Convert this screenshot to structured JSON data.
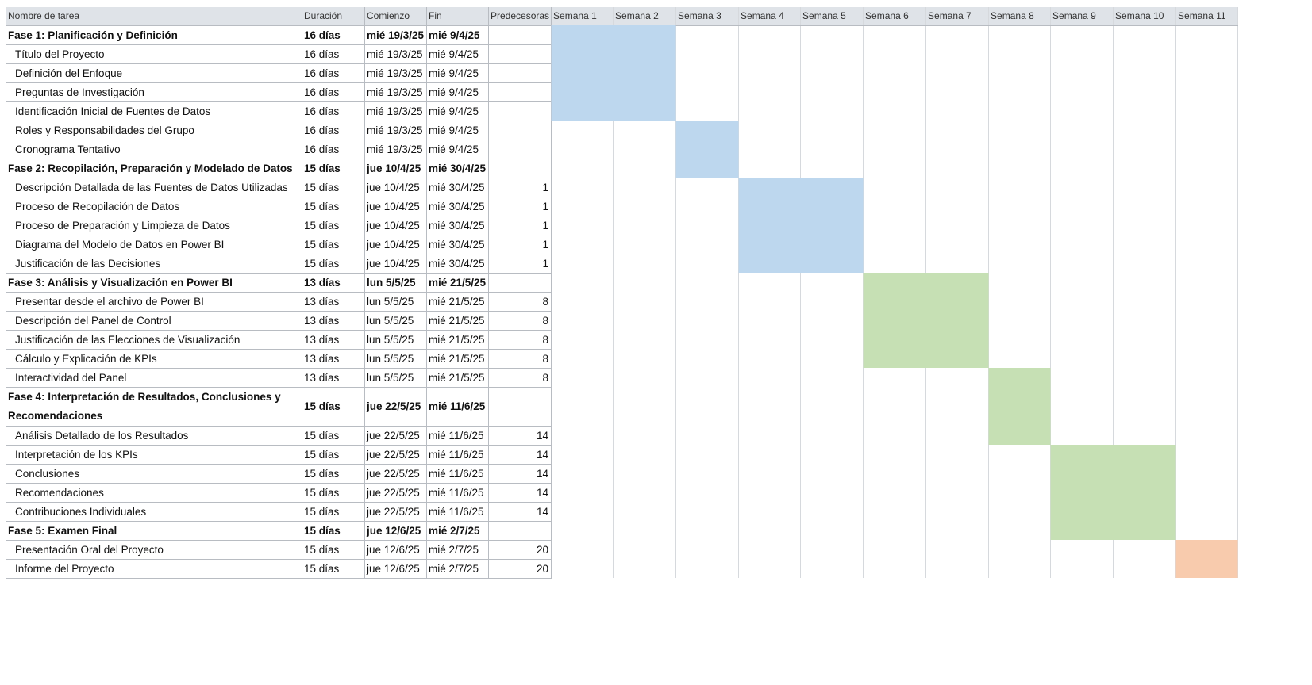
{
  "columns": {
    "name": "Nombre de tarea",
    "duration": "Duración",
    "start": "Comienzo",
    "end": "Fin",
    "predecessors": "Predecesoras",
    "weeks": [
      "Semana 1",
      "Semana 2",
      "Semana 3",
      "Semana 4",
      "Semana 5",
      "Semana 6",
      "Semana 7",
      "Semana 8",
      "Semana 9",
      "Semana 10",
      "Semana 11"
    ]
  },
  "rows": [
    {
      "name": "Fase 1: Planificación y Definición",
      "duration": "16 días",
      "start": "mié 19/3/25",
      "end": "mié 9/4/25",
      "pred": "",
      "phase": true
    },
    {
      "name": "Título del Proyecto",
      "duration": "16 días",
      "start": "mié 19/3/25",
      "end": "mié 9/4/25",
      "pred": "",
      "phase": false
    },
    {
      "name": "Definición del Enfoque",
      "duration": "16 días",
      "start": "mié 19/3/25",
      "end": "mié 9/4/25",
      "pred": "",
      "phase": false
    },
    {
      "name": "Preguntas de Investigación",
      "duration": "16 días",
      "start": "mié 19/3/25",
      "end": "mié 9/4/25",
      "pred": "",
      "phase": false
    },
    {
      "name": "Identificación Inicial de Fuentes de Datos",
      "duration": "16 días",
      "start": "mié 19/3/25",
      "end": "mié 9/4/25",
      "pred": "",
      "phase": false
    },
    {
      "name": "Roles y Responsabilidades del Grupo",
      "duration": "16 días",
      "start": "mié 19/3/25",
      "end": "mié 9/4/25",
      "pred": "",
      "phase": false
    },
    {
      "name": "Cronograma Tentativo",
      "duration": "16 días",
      "start": "mié 19/3/25",
      "end": "mié 9/4/25",
      "pred": "",
      "phase": false
    },
    {
      "name": "Fase 2: Recopilación, Preparación y Modelado de Datos",
      "duration": "15 días",
      "start": "jue 10/4/25",
      "end": "mié 30/4/25",
      "pred": "",
      "phase": true
    },
    {
      "name": "Descripción Detallada de las Fuentes de Datos Utilizadas",
      "duration": "15 días",
      "start": "jue 10/4/25",
      "end": "mié 30/4/25",
      "pred": "1",
      "phase": false
    },
    {
      "name": "Proceso de Recopilación de Datos",
      "duration": "15 días",
      "start": "jue 10/4/25",
      "end": "mié 30/4/25",
      "pred": "1",
      "phase": false
    },
    {
      "name": "Proceso de Preparación y Limpieza de Datos",
      "duration": "15 días",
      "start": "jue 10/4/25",
      "end": "mié 30/4/25",
      "pred": "1",
      "phase": false
    },
    {
      "name": "Diagrama del Modelo de Datos en Power BI",
      "duration": "15 días",
      "start": "jue 10/4/25",
      "end": "mié 30/4/25",
      "pred": "1",
      "phase": false
    },
    {
      "name": "Justificación de las Decisiones",
      "duration": "15 días",
      "start": "jue 10/4/25",
      "end": "mié 30/4/25",
      "pred": "1",
      "phase": false
    },
    {
      "name": "Fase 3: Análisis y Visualización en Power BI",
      "duration": "13 días",
      "start": "lun 5/5/25",
      "end": "mié 21/5/25",
      "pred": "",
      "phase": true
    },
    {
      "name": "Presentar desde el archivo de Power BI",
      "duration": "13 días",
      "start": "lun 5/5/25",
      "end": "mié 21/5/25",
      "pred": "8",
      "phase": false
    },
    {
      "name": "Descripción del Panel de Control",
      "duration": "13 días",
      "start": "lun 5/5/25",
      "end": "mié 21/5/25",
      "pred": "8",
      "phase": false
    },
    {
      "name": "Justificación de las Elecciones de Visualización",
      "duration": "13 días",
      "start": "lun 5/5/25",
      "end": "mié 21/5/25",
      "pred": "8",
      "phase": false
    },
    {
      "name": "Cálculo y Explicación de KPIs",
      "duration": "13 días",
      "start": "lun 5/5/25",
      "end": "mié 21/5/25",
      "pred": "8",
      "phase": false
    },
    {
      "name": "Interactividad del Panel",
      "duration": "13 días",
      "start": "lun 5/5/25",
      "end": "mié 21/5/25",
      "pred": "8",
      "phase": false
    },
    {
      "name": "Fase 4: Interpretación de Resultados, Conclusiones y Recomendaciones",
      "duration": "15 días",
      "start": "jue 22/5/25",
      "end": "mié 11/6/25",
      "pred": "",
      "phase": true
    },
    {
      "name": "Análisis Detallado de los Resultados",
      "duration": "15 días",
      "start": "jue 22/5/25",
      "end": "mié 11/6/25",
      "pred": "14",
      "phase": false
    },
    {
      "name": "Interpretación de los KPIs",
      "duration": "15 días",
      "start": "jue 22/5/25",
      "end": "mié 11/6/25",
      "pred": "14",
      "phase": false
    },
    {
      "name": "Conclusiones",
      "duration": "15 días",
      "start": "jue 22/5/25",
      "end": "mié 11/6/25",
      "pred": "14",
      "phase": false
    },
    {
      "name": "Recomendaciones",
      "duration": "15 días",
      "start": "jue 22/5/25",
      "end": "mié 11/6/25",
      "pred": "14",
      "phase": false
    },
    {
      "name": "Contribuciones Individuales",
      "duration": "15 días",
      "start": "jue 22/5/25",
      "end": "mié 11/6/25",
      "pred": "14",
      "phase": false
    },
    {
      "name": "Fase 5: Examen Final",
      "duration": "15 días",
      "start": "jue 12/6/25",
      "end": "mié 2/7/25",
      "pred": "",
      "phase": true
    },
    {
      "name": "Presentación Oral del Proyecto",
      "duration": "15 días",
      "start": "jue 12/6/25",
      "end": "mié 2/7/25",
      "pred": "20",
      "phase": false
    },
    {
      "name": "Informe del Proyecto",
      "duration": "15 días",
      "start": "jue 12/6/25",
      "end": "mié 2/7/25",
      "pred": "20",
      "phase": false
    }
  ],
  "chart_data": {
    "type": "gantt",
    "blocks": [
      {
        "label": "Semana 1 - Semana 2",
        "week_start": 1,
        "week_end": 2,
        "row_start": 0,
        "row_end": 4,
        "color": "#bdd7ee"
      },
      {
        "label": "Semana 3",
        "week_start": 3,
        "week_end": 3,
        "row_start": 5,
        "row_end": 7,
        "color": "#bdd7ee"
      },
      {
        "label": "Semana 4 - Semana 5",
        "week_start": 4,
        "week_end": 5,
        "row_start": 8,
        "row_end": 12,
        "color": "#bdd7ee"
      },
      {
        "label": "Semana 6 - Semana 7",
        "week_start": 6,
        "week_end": 7,
        "row_start": 13,
        "row_end": 17,
        "color": "#c6e0b4"
      },
      {
        "label": "Semana 8",
        "week_start": 8,
        "week_end": 8,
        "row_start": 18,
        "row_end": 20,
        "color": "#c6e0b4"
      },
      {
        "label": "Semana 9 - Semana 10",
        "week_start": 9,
        "week_end": 10,
        "row_start": 21,
        "row_end": 25,
        "color": "#c6e0b4"
      },
      {
        "label": "Semana 11",
        "week_start": 11,
        "week_end": 11,
        "row_start": 26,
        "row_end": 27,
        "color": "#f8cbad"
      }
    ]
  }
}
